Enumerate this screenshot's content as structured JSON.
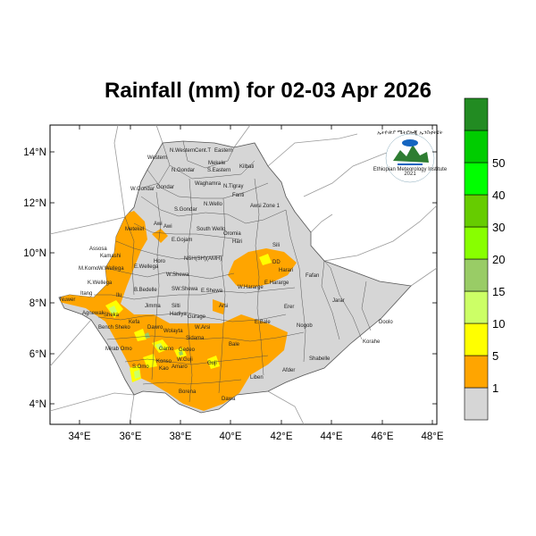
{
  "title": "Rainfall (mm) for 02-03 Apr 2026",
  "axes": {
    "lat_ticks": [
      "4°N",
      "6°N",
      "8°N",
      "10°N",
      "12°N",
      "14°N"
    ],
    "lon_ticks": [
      "34°E",
      "36°E",
      "38°E",
      "40°E",
      "42°E",
      "44°E",
      "46°E",
      "48°E"
    ]
  },
  "colorbar": {
    "labels": [
      "1",
      "5",
      "10",
      "15",
      "20",
      "30",
      "40",
      "50"
    ],
    "colors": [
      "#d6d6d6",
      "#ffa500",
      "#ffff00",
      "#ccff66",
      "#99cc66",
      "#88ff00",
      "#66cc00",
      "#00ff00",
      "#00cc00",
      "#228b22"
    ]
  },
  "regions": {
    "western": "Western",
    "n_western": "N.Western",
    "cent_t": "Cent.T",
    "eastern": "Eastern",
    "mekele": "Mekele",
    "s_eastern": "S.Eastern",
    "kilbati": "Kilbati",
    "n_gondar": "N.Gondar",
    "waghamra": "Waghamra",
    "w_gondar": "W.Gondar",
    "gondar": "Gondar",
    "n_tigray": "N.Tigray",
    "s_gondar": "S.Gondar",
    "n_wello": "N.Wello",
    "fanti": "Fanti",
    "awsi_zone1": "Awsi Zone 1",
    "metekel": "Metekel",
    "awi": "Awi",
    "e_gojam": "E.Gojam",
    "south_wello": "South Wello",
    "oromia": "Oromia",
    "hari": "Hari",
    "sili": "Sili",
    "assosa": "Assosa",
    "kamashi": "Kamashi",
    "horo": "Horo",
    "nsh_sha_amh": "NSH(SH)(AMH)",
    "harari": "Harari",
    "dd": "DD",
    "m_komo": "M.Komo",
    "w_wellega": "W.Wellega",
    "e_wellega": "E.Wellega",
    "w_shewa": "W.Shewa",
    "w_hararge": "W.Hararge",
    "e_hararge": "E.Hararge",
    "fafan": "Fafan",
    "k_wellega": "K.Wellega",
    "ilu": "Ilu",
    "b_bedelle": "B.Bedelle",
    "sw_shewa": "SW.Shewa",
    "e_shewa": "E.Shewa",
    "jarar": "Jarar",
    "nuwer": "Nuwer",
    "itang": "Itang",
    "jimma": "Jimma",
    "arsi": "Arsi",
    "erer": "Erer",
    "agnewak": "Agnewak",
    "silti": "Silti",
    "hadiya": "Hadiya",
    "w_arsi": "W.Arsi",
    "e_bale": "E.Bale",
    "nogob": "Nogob",
    "doolo": "Doolo",
    "kefa": "Kefa",
    "bench_sheko": "Bench Sheko",
    "wolayta": "Wolayta",
    "sidama": "Sidama",
    "bale": "Bale",
    "korahe": "Korahe",
    "mirab_omo": "Mirab Omo",
    "gamo": "Gamo",
    "gedeo": "Gedeo",
    "shabelle": "Shabelle",
    "s_omo": "S.Omo",
    "w_guji": "W.Guji",
    "guji": "Guji",
    "konso": "Konso",
    "liben": "Liben",
    "afder": "Afder",
    "borena": "Borena",
    "dawa": "Dawa",
    "sheka": "Sheka",
    "dawro": "Dawro",
    "kao": "Kao",
    "amaro": "Amaro",
    "gurage": "Gurage"
  },
  "logo": {
    "arc_text": "ኢትዮጵያ ሜትሮሎጂ ኢንስቲትዩት",
    "name": "Ethiopian Meteorology Institute",
    "year": "2021"
  }
}
